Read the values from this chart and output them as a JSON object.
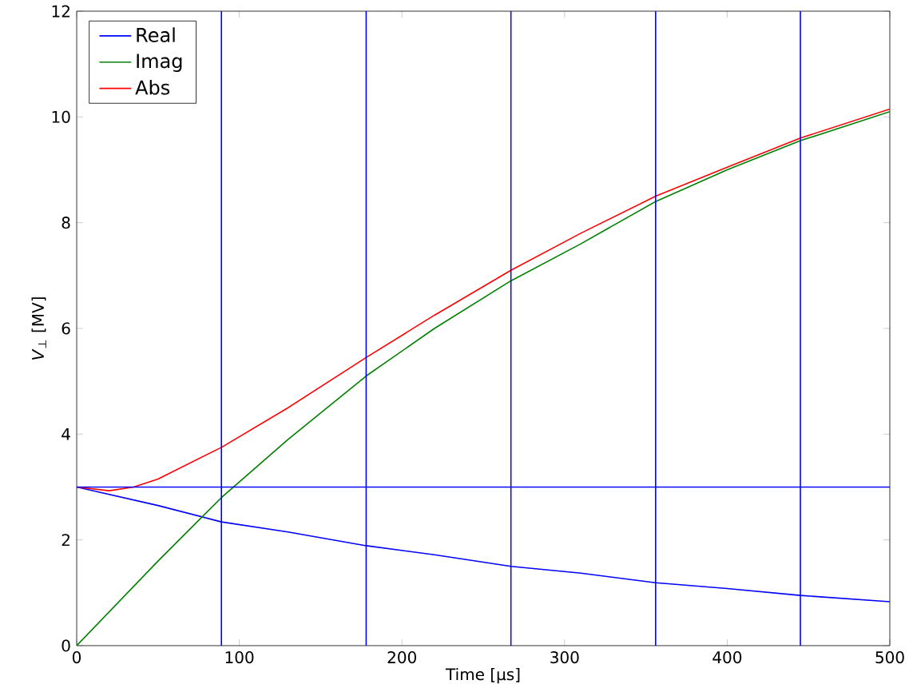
{
  "chart_data": {
    "type": "line",
    "xlabel": "Time [μs]",
    "ylabel": "*V*$_{⊥}$ [MV]",
    "xlim": [
      0,
      500
    ],
    "ylim": [
      0,
      12
    ],
    "xticks": [
      0,
      100,
      200,
      300,
      400,
      500
    ],
    "yticks": [
      0,
      2,
      4,
      6,
      8,
      10,
      12
    ],
    "legend": "top left",
    "grid": false,
    "series": [
      {
        "name": "Real",
        "color": "#0000ff",
        "x": [
          0,
          50,
          89,
          130,
          178,
          220,
          267,
          310,
          356,
          400,
          445,
          500
        ],
        "values": [
          3,
          2.65,
          2.34,
          2.15,
          1.89,
          1.72,
          1.5,
          1.37,
          1.19,
          1.08,
          0.95,
          0.83
        ]
      },
      {
        "name": "Imag",
        "color": "#008000",
        "x": [
          0,
          50,
          89,
          130,
          178,
          220,
          267,
          310,
          356,
          400,
          445,
          500
        ],
        "values": [
          0,
          1.6,
          2.8,
          3.9,
          5.1,
          6.0,
          6.9,
          7.6,
          8.4,
          9.0,
          9.55,
          10.1
        ]
      },
      {
        "name": "Abs",
        "color": "#ff0000",
        "x": [
          0,
          20,
          35,
          50,
          89,
          130,
          178,
          220,
          267,
          310,
          356,
          400,
          445,
          500
        ],
        "values": [
          3,
          2.93,
          3,
          3.15,
          3.75,
          4.5,
          5.45,
          6.25,
          7.1,
          7.8,
          8.5,
          9.05,
          9.6,
          10.15
        ]
      }
    ],
    "ref_lines": [
      {
        "axis": "x",
        "value": 89,
        "color": "#0000ff"
      },
      {
        "axis": "x",
        "value": 178,
        "color": "#0000ff"
      },
      {
        "axis": "x",
        "value": 267,
        "color": "#0000ff"
      },
      {
        "axis": "x",
        "value": 356,
        "color": "#0000ff"
      },
      {
        "axis": "x",
        "value": 445,
        "color": "#0000ff"
      },
      {
        "axis": "y",
        "value": 3,
        "color": "#0000ff"
      }
    ]
  }
}
